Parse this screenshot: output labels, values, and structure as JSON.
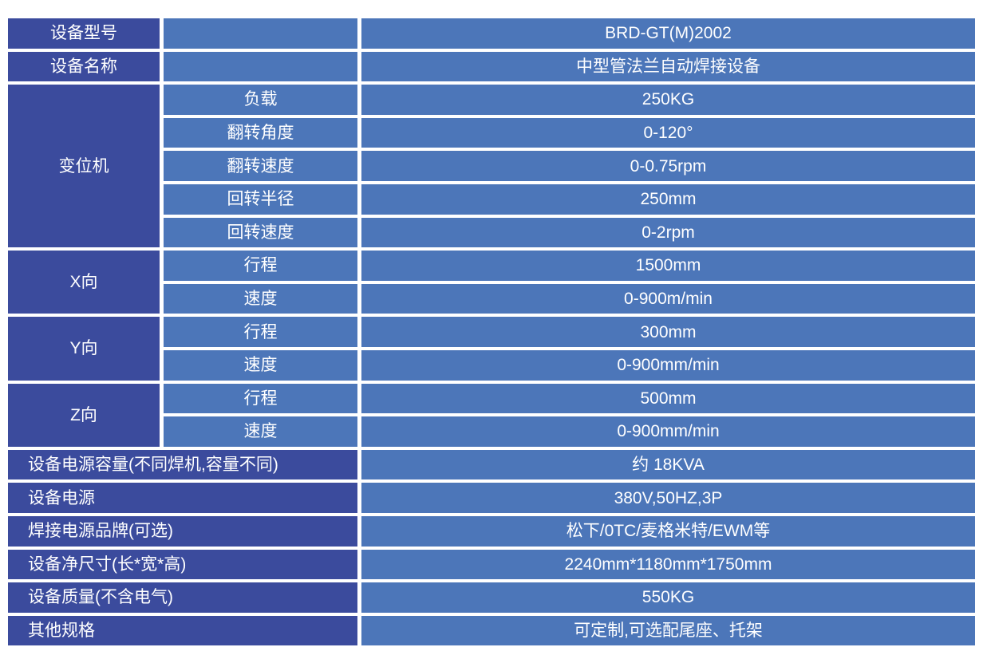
{
  "table": {
    "colors": {
      "label_dark_blue": "#3b4b9d",
      "value_light_blue": "#4c76b9",
      "grid_gap_white": "#ffffff",
      "text_white": "#ffffff"
    },
    "top_rows": [
      {
        "label": "设备型号",
        "value": "BRD-GT(M)2002"
      },
      {
        "label": "设备名称",
        "value": "中型管法兰自动焊接设备"
      }
    ],
    "groups": [
      {
        "label": "变位机",
        "rows": [
          {
            "param": "负载",
            "value": "250KG"
          },
          {
            "param": "翻转角度",
            "value": "0-120°"
          },
          {
            "param": "翻转速度",
            "value": "0-0.75rpm"
          },
          {
            "param": "回转半径",
            "value": "250mm"
          },
          {
            "param": "回转速度",
            "value": "0-2rpm"
          }
        ]
      },
      {
        "label": "X向",
        "rows": [
          {
            "param": "行程",
            "value": "1500mm"
          },
          {
            "param": "速度",
            "value": "0-900m/min"
          }
        ]
      },
      {
        "label": "Y向",
        "rows": [
          {
            "param": "行程",
            "value": "300mm"
          },
          {
            "param": "速度",
            "value": "0-900mm/min"
          }
        ]
      },
      {
        "label": "Z向",
        "rows": [
          {
            "param": "行程",
            "value": "500mm"
          },
          {
            "param": "速度",
            "value": "0-900mm/min"
          }
        ]
      }
    ],
    "bottom_rows": [
      {
        "label": "设备电源容量(不同焊机,容量不同)",
        "value": "约 18KVA"
      },
      {
        "label": "设备电源",
        "value": "380V,50HZ,3P"
      },
      {
        "label": "焊接电源品牌(可选)",
        "value": "松下/0TC/麦格米特/EWM等"
      },
      {
        "label": "设备净尺寸(长*宽*高)",
        "value": "2240mm*1180mm*1750mm"
      },
      {
        "label": "设备质量(不含电气)",
        "value": "550KG"
      },
      {
        "label": "其他规格",
        "value": "可定制,可选配尾座、托架"
      }
    ]
  }
}
